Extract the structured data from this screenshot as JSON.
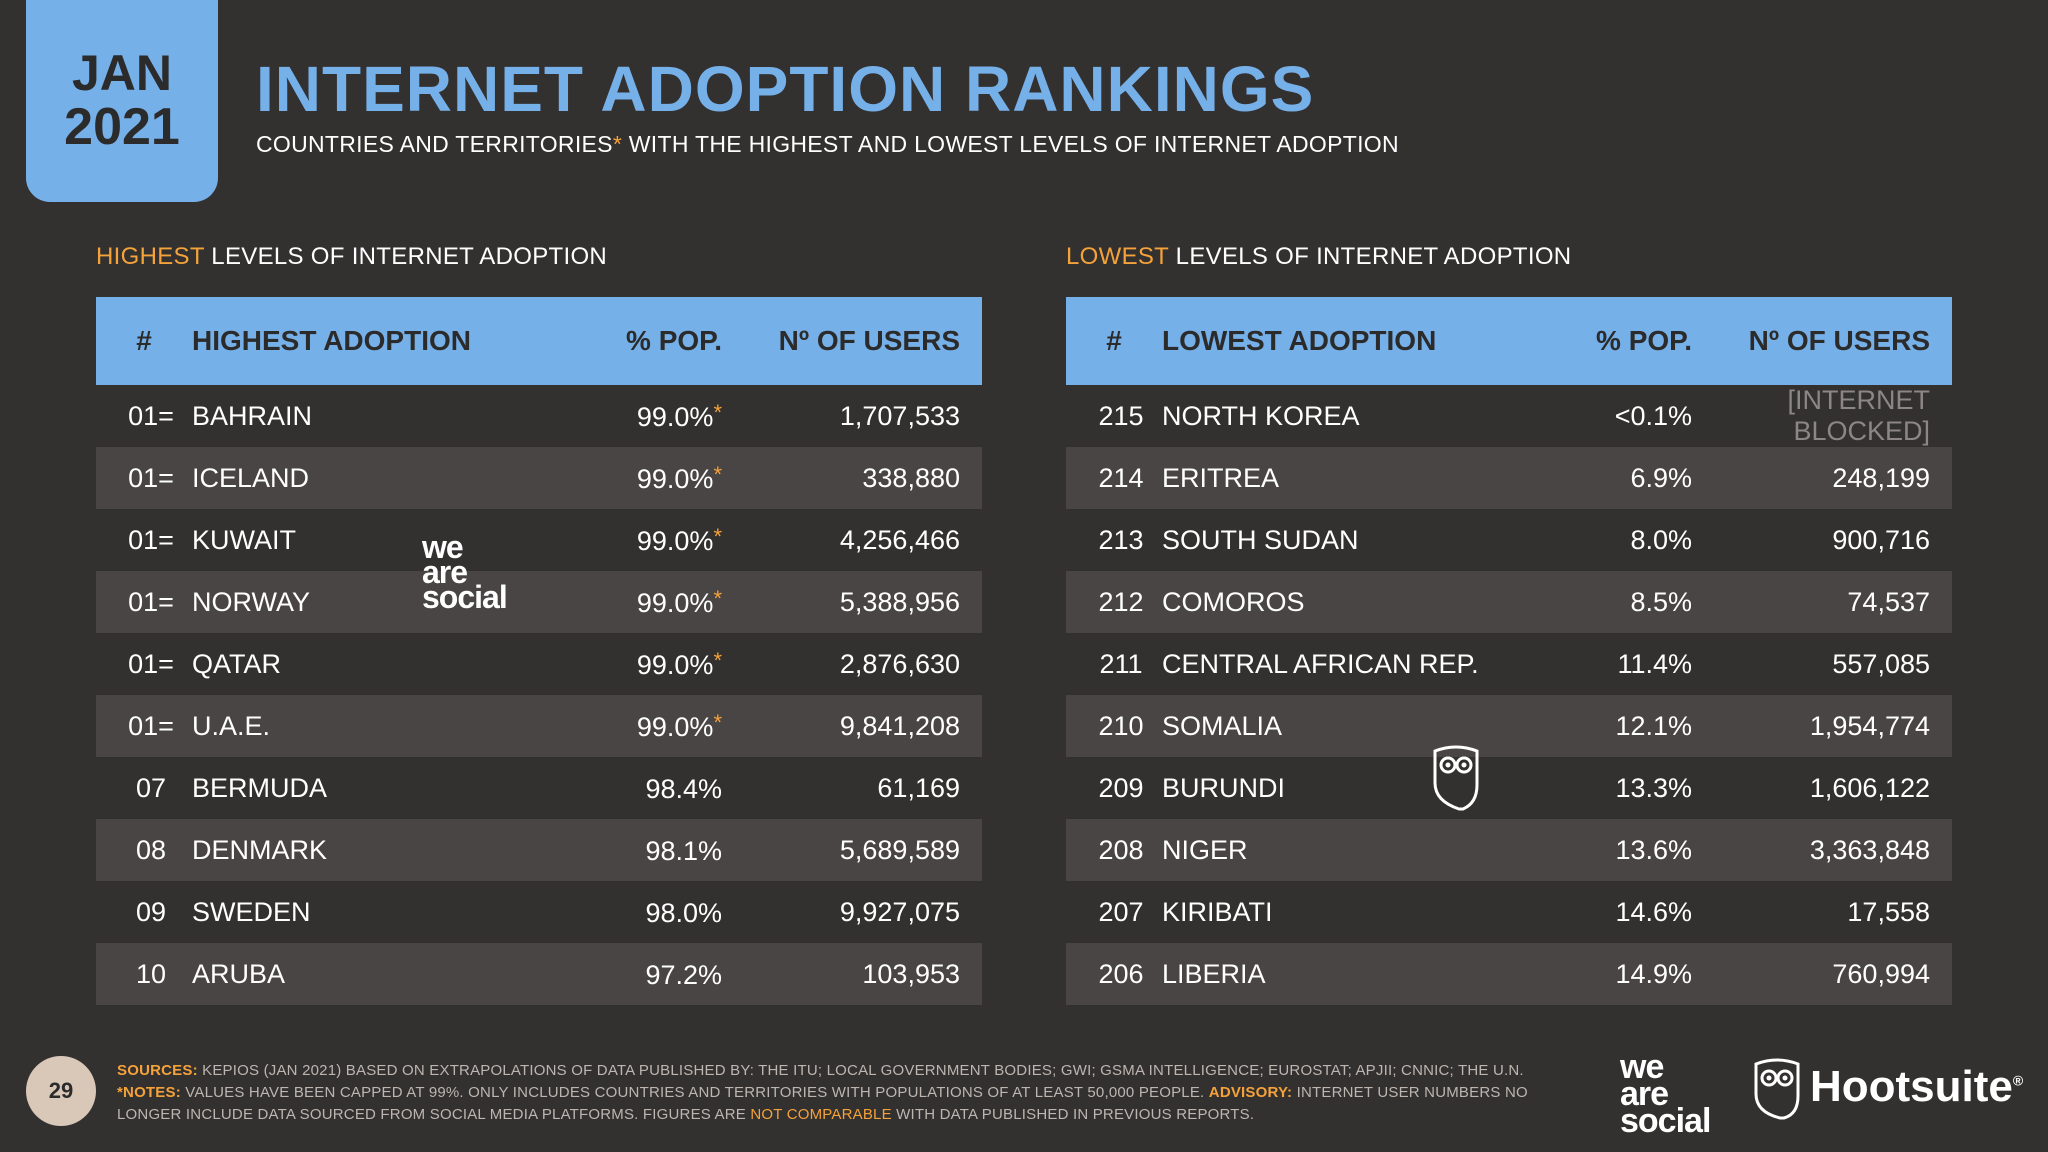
{
  "header": {
    "month": "JAN",
    "year": "2021",
    "title": "INTERNET ADOPTION RANKINGS",
    "subtitle_a": "COUNTRIES AND TERRITORIES",
    "subtitle_star": "*",
    "subtitle_b": " WITH THE HIGHEST AND LOWEST LEVELS OF INTERNET ADOPTION"
  },
  "highest": {
    "label_accent": "HIGHEST",
    "label_rest": " LEVELS OF INTERNET ADOPTION",
    "columns": [
      "#",
      "HIGHEST ADOPTION",
      "% POP.",
      "Nº OF USERS"
    ],
    "rows": [
      {
        "rank": "01=",
        "name": "BAHRAIN",
        "pop": "99.0%",
        "star": "*",
        "users": "1,707,533"
      },
      {
        "rank": "01=",
        "name": "ICELAND",
        "pop": "99.0%",
        "star": "*",
        "users": "338,880"
      },
      {
        "rank": "01=",
        "name": "KUWAIT",
        "pop": "99.0%",
        "star": "*",
        "users": "4,256,466"
      },
      {
        "rank": "01=",
        "name": "NORWAY",
        "pop": "99.0%",
        "star": "*",
        "users": "5,388,956"
      },
      {
        "rank": "01=",
        "name": "QATAR",
        "pop": "99.0%",
        "star": "*",
        "users": "2,876,630"
      },
      {
        "rank": "01=",
        "name": "U.A.E.",
        "pop": "99.0%",
        "star": "*",
        "users": "9,841,208"
      },
      {
        "rank": "07",
        "name": "BERMUDA",
        "pop": "98.4%",
        "star": "",
        "users": "61,169"
      },
      {
        "rank": "08",
        "name": "DENMARK",
        "pop": "98.1%",
        "star": "",
        "users": "5,689,589"
      },
      {
        "rank": "09",
        "name": "SWEDEN",
        "pop": "98.0%",
        "star": "",
        "users": "9,927,075"
      },
      {
        "rank": "10",
        "name": "ARUBA",
        "pop": "97.2%",
        "star": "",
        "users": "103,953"
      }
    ]
  },
  "lowest": {
    "label_accent": "LOWEST",
    "label_rest": " LEVELS OF INTERNET ADOPTION",
    "columns": [
      "#",
      "LOWEST ADOPTION",
      "% POP.",
      "Nº OF USERS"
    ],
    "rows": [
      {
        "rank": "215",
        "name": "NORTH KOREA",
        "pop": "<0.1%",
        "users": "[INTERNET BLOCKED]",
        "blocked": true
      },
      {
        "rank": "214",
        "name": "ERITREA",
        "pop": "6.9%",
        "users": "248,199"
      },
      {
        "rank": "213",
        "name": "SOUTH SUDAN",
        "pop": "8.0%",
        "users": "900,716"
      },
      {
        "rank": "212",
        "name": "COMOROS",
        "pop": "8.5%",
        "users": "74,537"
      },
      {
        "rank": "211",
        "name": "CENTRAL AFRICAN REP.",
        "pop": "11.4%",
        "users": "557,085"
      },
      {
        "rank": "210",
        "name": "SOMALIA",
        "pop": "12.1%",
        "users": "1,954,774"
      },
      {
        "rank": "209",
        "name": "BURUNDI",
        "pop": "13.3%",
        "users": "1,606,122"
      },
      {
        "rank": "208",
        "name": "NIGER",
        "pop": "13.6%",
        "users": "3,363,848"
      },
      {
        "rank": "207",
        "name": "KIRIBATI",
        "pop": "14.6%",
        "users": "17,558"
      },
      {
        "rank": "206",
        "name": "LIBERIA",
        "pop": "14.9%",
        "users": "760,994"
      }
    ]
  },
  "watermark": {
    "l1": "we",
    "l2": "are",
    "l3": "social"
  },
  "footer": {
    "page": "29",
    "sources_label": "SOURCES:",
    "sources_text": " KEPIOS (JAN 2021) BASED ON EXTRAPOLATIONS OF DATA PUBLISHED BY: THE ITU; LOCAL GOVERNMENT BODIES; GWI; GSMA INTELLIGENCE; EUROSTAT; APJII; CNNIC; THE U.N.",
    "notes_label": "*NOTES:",
    "notes_text": " VALUES HAVE BEEN CAPPED AT 99%. ONLY INCLUDES COUNTRIES AND TERRITORIES WITH POPULATIONS OF AT LEAST 50,000 PEOPLE. ",
    "advisory_label": "ADVISORY:",
    "advisory_text": " INTERNET USER NUMBERS NO LONGER INCLUDE DATA SOURCED FROM SOCIAL MEDIA PLATFORMS. FIGURES ARE ",
    "not_comparable": "NOT COMPARABLE",
    "tail_text": " WITH DATA PUBLISHED IN PREVIOUS REPORTS.",
    "logo_was": {
      "l1": "we",
      "l2": "are",
      "l3": "social"
    },
    "hootsuite": "Hootsuite",
    "hootsuite_mark": "®"
  },
  "colors": {
    "accent_blue": "#76b0e8",
    "accent_orange": "#f4a23a",
    "background": "#333030",
    "row_alt": "#4a4545"
  }
}
